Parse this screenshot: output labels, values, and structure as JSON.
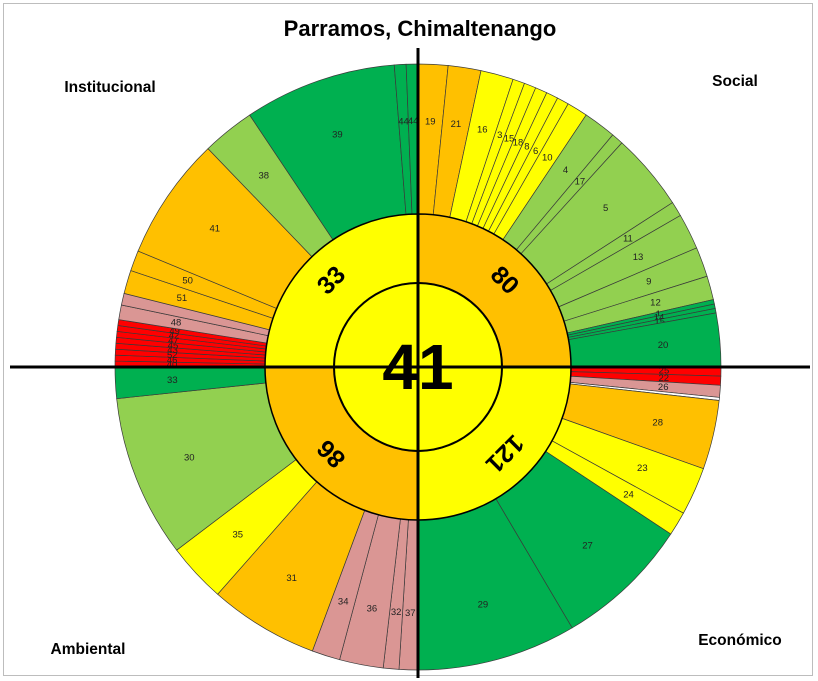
{
  "chart_data": {
    "type": "sunburst",
    "title": "Parramos, Chimaltenango",
    "total": "41",
    "dimensions": [
      {
        "name": "Social",
        "score": "80",
        "color": "#ffc000"
      },
      {
        "name": "Económico",
        "score": "121",
        "color": "#ffff00"
      },
      {
        "name": "Ambiental",
        "score": "86",
        "color": "#ffc000"
      },
      {
        "name": "Institucional",
        "score": "33",
        "color": "#ffff00"
      }
    ],
    "indicators": {
      "Social": [
        {
          "label": "19",
          "value": 1,
          "color": "#ffc000"
        },
        {
          "label": "21",
          "value": 1.1,
          "color": "#ffc000"
        },
        {
          "label": "16",
          "value": 1.1,
          "color": "#ffff00"
        },
        {
          "label": "3",
          "value": 0.4,
          "color": "#ffff00"
        },
        {
          "label": "15",
          "value": 0.4,
          "color": "#ffff00"
        },
        {
          "label": "18",
          "value": 0.4,
          "color": "#ffff00"
        },
        {
          "label": "8",
          "value": 0.4,
          "color": "#ffff00"
        },
        {
          "label": "6",
          "value": 0.4,
          "color": "#ffff00"
        },
        {
          "label": "10",
          "value": 0.7,
          "color": "#ffff00"
        },
        {
          "label": "4",
          "value": 1.1,
          "color": "#92d050"
        },
        {
          "label": "17",
          "value": 0.4,
          "color": "#92d050"
        },
        {
          "label": "5",
          "value": 2.6,
          "color": "#92d050"
        },
        {
          "label": "11",
          "value": 0.5,
          "color": "#92d050"
        },
        {
          "label": "13",
          "value": 1.2,
          "color": "#92d050"
        },
        {
          "label": "9",
          "value": 1.0,
          "color": "#92d050"
        },
        {
          "label": "12",
          "value": 0.8,
          "color": "#92d050"
        },
        {
          "label": "1",
          "value": 0.15,
          "color": "#00b050"
        },
        {
          "label": "14",
          "value": 0.15,
          "color": "#00b050"
        },
        {
          "label": "15",
          "value": 0.15,
          "color": "#00b050"
        },
        {
          "label": "20",
          "value": 1.8,
          "color": "#00b050"
        }
      ],
      "Económico": [
        {
          "label": "25",
          "value": 0.3,
          "color": "#ff0000"
        },
        {
          "label": "22",
          "value": 0.3,
          "color": "#ff0000"
        },
        {
          "label": "26",
          "value": 0.4,
          "color": "#da9694"
        },
        {
          "label": "",
          "value": 0.1,
          "color": "#ffffff"
        },
        {
          "label": "28",
          "value": 2.3,
          "color": "#ffc000"
        },
        {
          "label": "23",
          "value": 1.6,
          "color": "#ffff00"
        },
        {
          "label": "24",
          "value": 0.8,
          "color": "#ffff00"
        },
        {
          "label": "27",
          "value": 4.5,
          "color": "#00b050"
        },
        {
          "label": "29",
          "value": 5.3,
          "color": "#00b050"
        }
      ],
      "Ambiental": [
        {
          "label": "37",
          "value": 0.6,
          "color": "#da9694"
        },
        {
          "label": "32",
          "value": 0.5,
          "color": "#da9694"
        },
        {
          "label": "36",
          "value": 1.4,
          "color": "#da9694"
        },
        {
          "label": "34",
          "value": 0.9,
          "color": "#da9694"
        },
        {
          "label": "31",
          "value": 3.5,
          "color": "#ffc000"
        },
        {
          "label": "35",
          "value": 1.9,
          "color": "#ffff00"
        },
        {
          "label": "30",
          "value": 5.2,
          "color": "#92d050"
        },
        {
          "label": "33",
          "value": 1.0,
          "color": "#00b050"
        }
      ],
      "Institucional": [
        {
          "label": "40",
          "value": 0.2,
          "color": "#ff0000"
        },
        {
          "label": "46",
          "value": 0.2,
          "color": "#ff0000"
        },
        {
          "label": "52",
          "value": 0.2,
          "color": "#ff0000"
        },
        {
          "label": "43",
          "value": 0.2,
          "color": "#ff0000"
        },
        {
          "label": "45",
          "value": 0.2,
          "color": "#ff0000"
        },
        {
          "label": "47",
          "value": 0.2,
          "color": "#ff0000"
        },
        {
          "label": "42",
          "value": 0.2,
          "color": "#ff0000"
        },
        {
          "label": "49",
          "value": 0.2,
          "color": "#ff0000"
        },
        {
          "label": "48",
          "value": 0.5,
          "color": "#da9694"
        },
        {
          "label": "",
          "value": 0.4,
          "color": "#da9694"
        },
        {
          "label": "51",
          "value": 0.8,
          "color": "#ffc000"
        },
        {
          "label": "50",
          "value": 0.7,
          "color": "#ffc000"
        },
        {
          "label": "41",
          "value": 4.2,
          "color": "#ffc000"
        },
        {
          "label": "38",
          "value": 1.8,
          "color": "#92d050"
        },
        {
          "label": "39",
          "value": 5.2,
          "color": "#00b050"
        },
        {
          "label": "44",
          "value": 0.4,
          "color": "#00b050"
        },
        {
          "label": "44",
          "value": 0.4,
          "color": "#00b050"
        }
      ]
    }
  }
}
